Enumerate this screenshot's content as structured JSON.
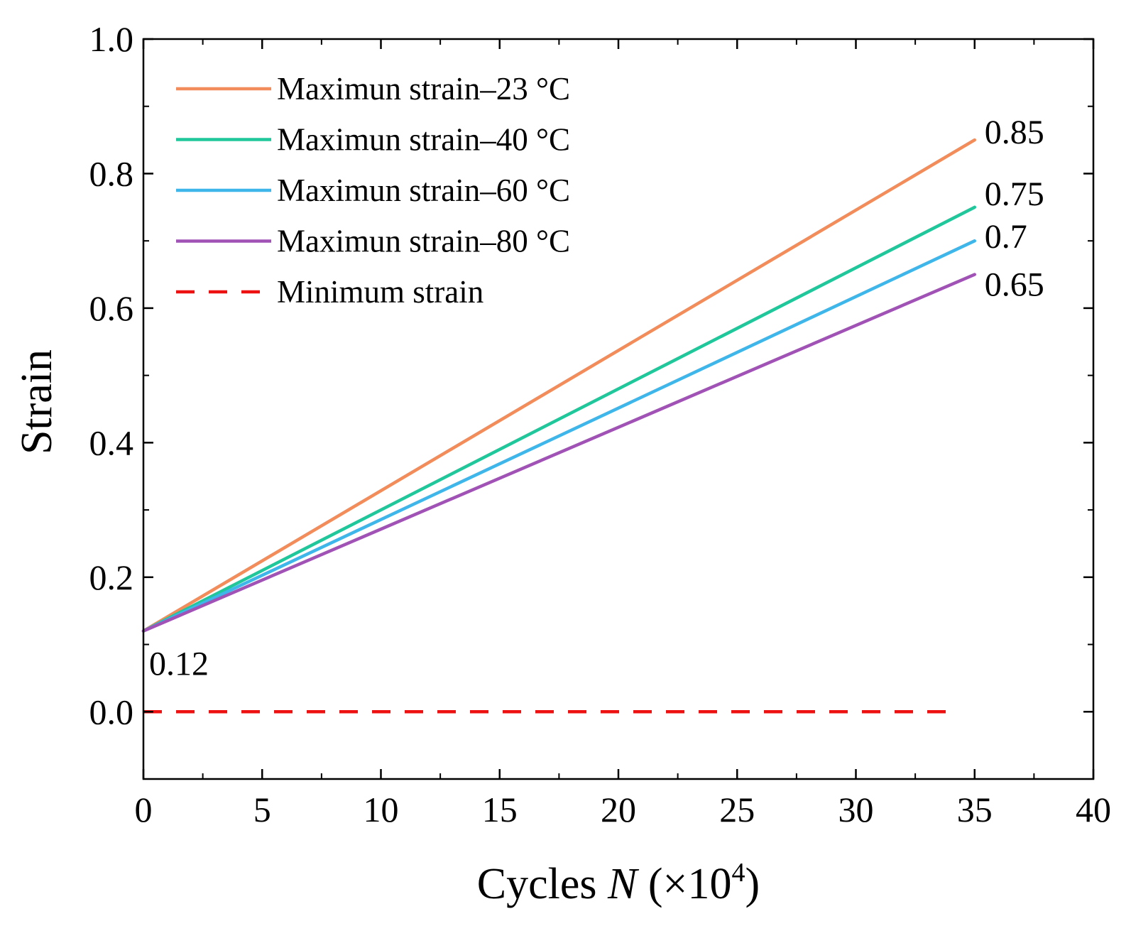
{
  "chart_data": {
    "type": "line",
    "title": "",
    "xlabel_prefix": "Cycles ",
    "xlabel_var": "N",
    "xlabel_unit_open": " (×10",
    "xlabel_sup": "4",
    "xlabel_unit_close": ")",
    "ylabel": "Strain",
    "xlim": [
      0,
      40
    ],
    "ylim": [
      -0.1,
      1.0
    ],
    "xticks": [
      0,
      5,
      10,
      15,
      20,
      25,
      30,
      35,
      40
    ],
    "xtick_labels": [
      "0",
      "5",
      "10",
      "15",
      "20",
      "25",
      "30",
      "35",
      "40"
    ],
    "yticks": [
      0.0,
      0.2,
      0.4,
      0.6,
      0.8,
      1.0
    ],
    "ytick_labels": [
      "0.0",
      "0.2",
      "0.4",
      "0.6",
      "0.8",
      "1.0"
    ],
    "grid": false,
    "legend_position": "top-left",
    "series": [
      {
        "name": "Maximun strain–23 °C",
        "color": "#F28C5A",
        "dash": "solid",
        "x": [
          0,
          35
        ],
        "y": [
          0.12,
          0.85
        ]
      },
      {
        "name": "Maximun strain–40 °C",
        "color": "#20C79A",
        "dash": "solid",
        "x": [
          0,
          35
        ],
        "y": [
          0.12,
          0.75
        ]
      },
      {
        "name": "Maximun strain–60 °C",
        "color": "#3FB6EA",
        "dash": "solid",
        "x": [
          0,
          35
        ],
        "y": [
          0.12,
          0.7
        ]
      },
      {
        "name": "Maximun strain–80 °C",
        "color": "#A052B5",
        "dash": "solid",
        "x": [
          0,
          35
        ],
        "y": [
          0.12,
          0.65
        ]
      },
      {
        "name": "Minimum strain",
        "color": "#EE1111",
        "dash": "dashed",
        "x": [
          0,
          34.2
        ],
        "y": [
          0.0,
          0.0
        ]
      }
    ],
    "annotations": [
      {
        "text": "0.85",
        "x": 35,
        "y": 0.85
      },
      {
        "text": "0.75",
        "x": 35,
        "y": 0.75
      },
      {
        "text": "0.7",
        "x": 35,
        "y": 0.7
      },
      {
        "text": "0.65",
        "x": 35,
        "y": 0.65
      },
      {
        "text": "0.12",
        "x": 0,
        "y": 0.12
      }
    ]
  }
}
